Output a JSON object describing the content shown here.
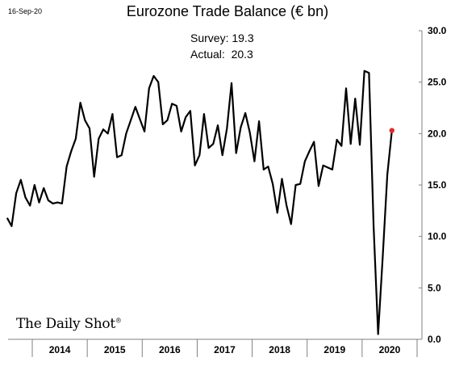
{
  "header": {
    "date": "16-Sep-20"
  },
  "logo": {
    "text": "The Daily Shot",
    "mark": "®"
  },
  "chart_data": {
    "type": "line",
    "title": "Eurozone Trade Balance (€ bn)",
    "annotations": [
      "Survey: 19.3",
      "Actual:  20.3"
    ],
    "ylim": [
      0,
      30
    ],
    "yticks": [
      "0.0",
      "5.0",
      "10.0",
      "15.0",
      "20.0",
      "25.0",
      "30.0"
    ],
    "y_axis_position": "right",
    "grid": false,
    "years": [
      "2014",
      "2015",
      "2016",
      "2017",
      "2018",
      "2019",
      "2020"
    ],
    "series": [
      {
        "color": "#000000",
        "x": [
          "2013-07",
          "2013-08",
          "2013-09",
          "2013-10",
          "2013-11",
          "2013-12",
          "2014-01",
          "2014-02",
          "2014-03",
          "2014-04",
          "2014-05",
          "2014-06",
          "2014-07",
          "2014-08",
          "2014-09",
          "2014-10",
          "2014-11",
          "2014-12",
          "2015-01",
          "2015-02",
          "2015-03",
          "2015-04",
          "2015-05",
          "2015-06",
          "2015-07",
          "2015-08",
          "2015-09",
          "2015-10",
          "2015-11",
          "2015-12",
          "2016-01",
          "2016-02",
          "2016-03",
          "2016-04",
          "2016-05",
          "2016-06",
          "2016-07",
          "2016-08",
          "2016-09",
          "2016-10",
          "2016-11",
          "2016-12",
          "2017-01",
          "2017-02",
          "2017-03",
          "2017-04",
          "2017-05",
          "2017-06",
          "2017-07",
          "2017-08",
          "2017-09",
          "2017-10",
          "2017-11",
          "2017-12",
          "2018-01",
          "2018-02",
          "2018-03",
          "2018-04",
          "2018-05",
          "2018-06",
          "2018-07",
          "2018-08",
          "2018-09",
          "2018-10",
          "2018-11",
          "2018-12",
          "2019-01",
          "2019-02",
          "2019-03",
          "2019-04",
          "2019-05",
          "2019-06",
          "2019-07",
          "2019-08",
          "2019-09",
          "2019-10",
          "2019-11",
          "2019-12",
          "2020-01",
          "2020-02",
          "2020-03",
          "2020-04",
          "2020-05",
          "2020-06",
          "2020-07"
        ],
        "values": [
          11.8,
          11.0,
          14.2,
          15.5,
          13.8,
          13.0,
          15.0,
          13.3,
          14.7,
          13.5,
          13.2,
          13.3,
          13.2,
          16.8,
          18.3,
          19.5,
          23.0,
          21.3,
          20.5,
          15.8,
          19.5,
          20.4,
          20.0,
          21.9,
          17.7,
          17.9,
          20.0,
          21.3,
          22.6,
          21.4,
          20.2,
          24.4,
          25.6,
          25.0,
          20.9,
          21.3,
          22.9,
          22.7,
          20.2,
          21.6,
          22.2,
          16.9,
          17.9,
          21.9,
          18.6,
          19.0,
          20.8,
          17.9,
          20.5,
          24.9,
          18.1,
          20.6,
          22.0,
          20.1,
          17.3,
          21.2,
          16.5,
          16.8,
          15.1,
          12.3,
          15.6,
          13.0,
          11.2,
          15.0,
          15.1,
          17.3,
          18.3,
          19.2,
          14.9,
          16.9,
          16.7,
          16.5,
          19.4,
          18.8,
          24.4,
          19.0,
          23.4,
          18.9,
          26.1,
          25.9,
          11.0,
          0.5,
          8.0,
          16.0,
          20.3
        ]
      }
    ],
    "highlight": {
      "x": "2020-07",
      "value": 20.3,
      "color": "#e8262a"
    }
  }
}
